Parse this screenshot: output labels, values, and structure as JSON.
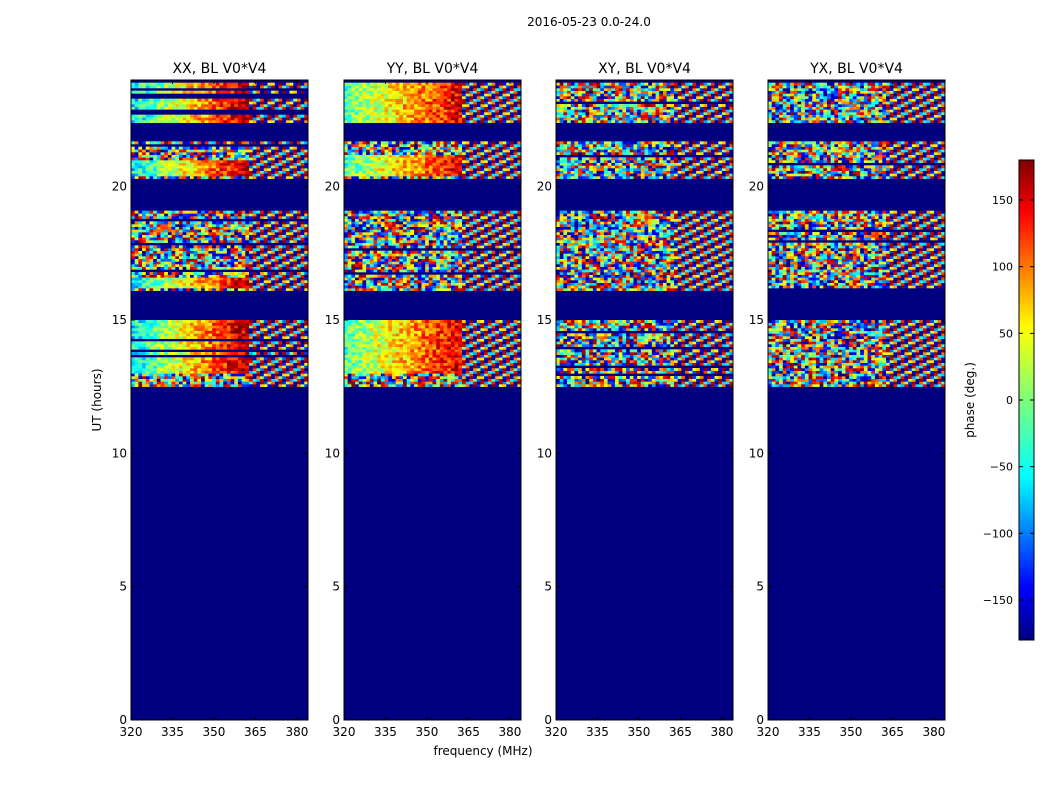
{
  "figure": {
    "title": "2016-05-23 0.0-24.0",
    "xlabel": "frequency (MHz)",
    "ylabel": "UT (hours)",
    "colorbar_label": "phase (deg.)",
    "colorbar_ticks": [
      150,
      100,
      50,
      0,
      -50,
      -100,
      -150
    ],
    "colorbar_range": [
      -180,
      180
    ],
    "colormap": "jet"
  },
  "chart_data": {
    "type": "heatmap",
    "quantity": "visibility phase",
    "units": "deg",
    "x_ticks": [
      320,
      335,
      350,
      365,
      380
    ],
    "xlim": [
      320,
      384
    ],
    "y_ticks": [
      0,
      5,
      10,
      15,
      20
    ],
    "ylim": [
      0,
      24
    ],
    "xlabel": "frequency (MHz)",
    "ylabel": "UT (hours)",
    "panels": [
      {
        "title": "XX, BL V0*V4",
        "pol": "XX",
        "coherent_bands": [
          [
            22.4,
            23.9
          ],
          [
            20.4,
            21.0
          ],
          [
            16.2,
            16.6
          ],
          [
            13.0,
            15.0
          ]
        ]
      },
      {
        "title": "YY, BL V0*V4",
        "pol": "YY",
        "coherent_bands": [
          [
            22.4,
            23.9
          ],
          [
            20.4,
            21.2
          ],
          [
            13.0,
            15.0
          ]
        ]
      },
      {
        "title": "XY, BL V0*V4",
        "pol": "XY",
        "coherent_bands": []
      },
      {
        "title": "YX, BL V0*V4",
        "pol": "YX",
        "coherent_bands": []
      }
    ],
    "data_present_ranges_hours": [
      [
        22.4,
        23.9
      ],
      [
        20.3,
        21.7
      ],
      [
        16.1,
        19.1
      ],
      [
        12.5,
        15.0
      ]
    ],
    "flagged_value_deg": -180
  }
}
